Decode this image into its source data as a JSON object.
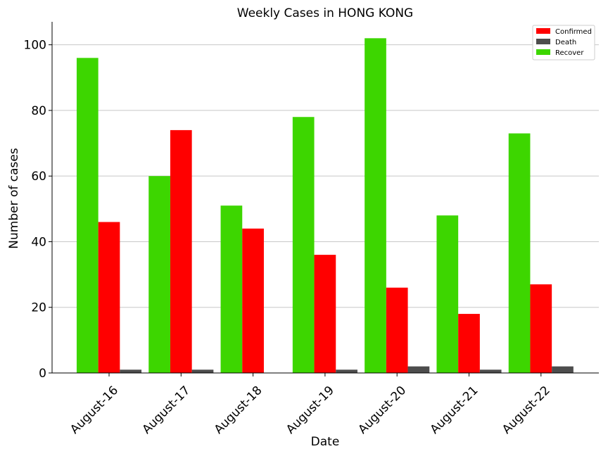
{
  "chart_data": {
    "type": "bar",
    "title": "Weekly Cases in HONG KONG",
    "xlabel": "Date",
    "ylabel": "Number of cases",
    "categories": [
      "August-16",
      "August-17",
      "August-18",
      "August-19",
      "August-20",
      "August-21",
      "August-22"
    ],
    "series": [
      {
        "name": "Confirmed",
        "color": "#ff0000",
        "values": [
          46,
          74,
          44,
          36,
          26,
          18,
          27
        ]
      },
      {
        "name": "Death",
        "color": "#4d4d4d",
        "values": [
          1,
          1,
          0,
          1,
          2,
          1,
          2
        ]
      },
      {
        "name": "Recover",
        "color": "#3dd600",
        "values": [
          96,
          60,
          51,
          78,
          102,
          48,
          73
        ]
      }
    ],
    "bar_order": [
      "Recover",
      "Confirmed",
      "Death"
    ],
    "ylim": [
      0,
      107
    ],
    "yticks": [
      0,
      20,
      40,
      60,
      80,
      100
    ],
    "grid": "horizontal",
    "legend_position": "top-right"
  }
}
